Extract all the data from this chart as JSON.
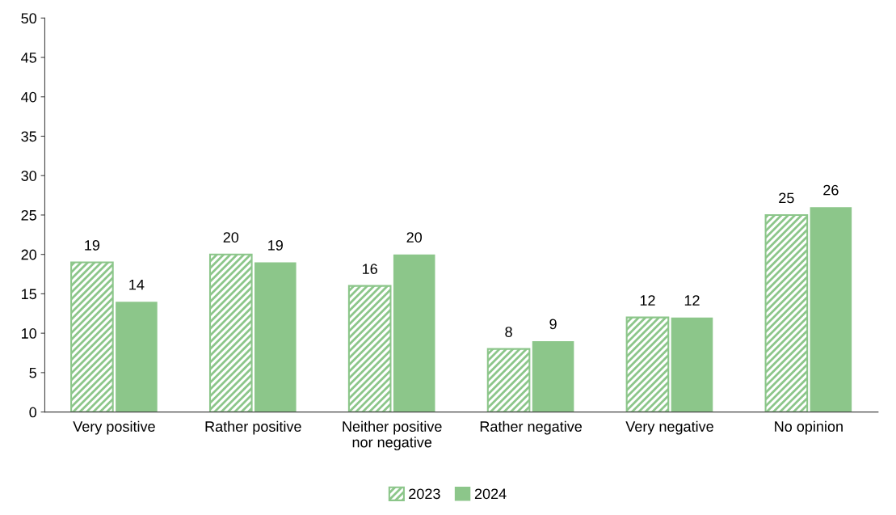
{
  "chart_data": {
    "type": "bar",
    "categories": [
      "Very positive",
      "Rather positive",
      "Neither positive\nnor negative",
      "Rather negative",
      "Very negative",
      "No opinion"
    ],
    "series": [
      {
        "name": "2023",
        "color": "#8cc68a",
        "values": [
          19,
          20,
          16,
          8,
          12,
          25
        ]
      },
      {
        "name": "2024",
        "color": "#8cc68a",
        "values": [
          14,
          19,
          20,
          9,
          12,
          26
        ]
      }
    ],
    "ylim": [
      0,
      50
    ],
    "yticks": [
      0,
      5,
      10,
      15,
      20,
      25,
      30,
      35,
      40,
      45,
      50
    ],
    "data_labels": true,
    "grid": false,
    "legend": "bottom"
  }
}
